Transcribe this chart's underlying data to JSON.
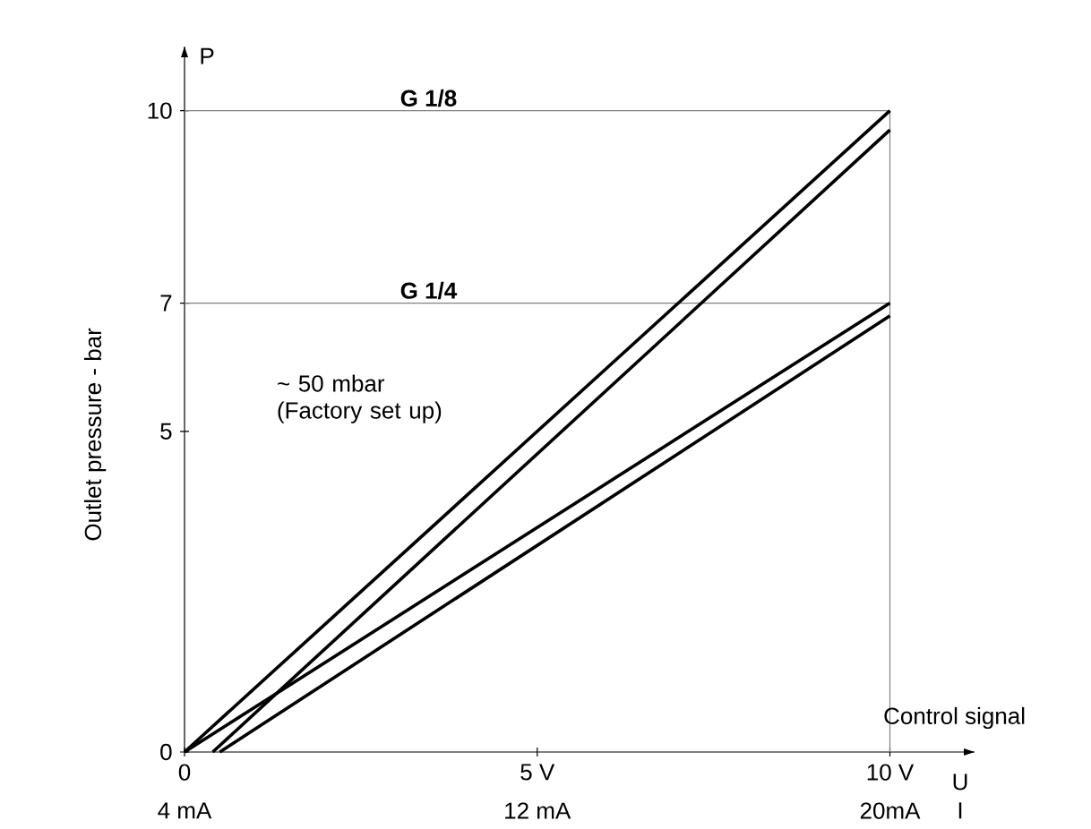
{
  "chart_data": {
    "type": "line",
    "ylabel": "Outlet pressure - bar",
    "xlabel": "U",
    "x2label": "I",
    "xlim": [
      0,
      11.2
    ],
    "xticks": [
      {
        "value": 0,
        "label": "0"
      },
      {
        "value": 5,
        "label": "5 V"
      },
      {
        "value": 10,
        "label": "10 V"
      }
    ],
    "x2lim": [
      4,
      21.92
    ],
    "x2ticks": [
      {
        "value": 4,
        "label": "4 mA"
      },
      {
        "value": 12,
        "label": "12 mA"
      },
      {
        "value": 20,
        "label": "20mA"
      }
    ],
    "ylim": [
      0,
      11
    ],
    "yticks": [
      0,
      5,
      7,
      10
    ],
    "series": [
      {
        "color": "#000000",
        "x": [
          0,
          10
        ],
        "values": [
          0,
          10
        ]
      },
      {
        "color": "#000000",
        "x": [
          0.4,
          10
        ],
        "values": [
          0,
          9.7
        ]
      },
      {
        "color": "#000000",
        "x": [
          0,
          10
        ],
        "values": [
          0,
          7
        ]
      },
      {
        "color": "#000000",
        "x": [
          0.5,
          10
        ],
        "values": [
          0,
          6.8
        ]
      }
    ],
    "ref_lines": [
      {
        "axis": "y",
        "value": 10,
        "label": "G 1/8",
        "color": "#808080"
      },
      {
        "axis": "y",
        "value": 7,
        "label": "G 1/4",
        "color": "#808080"
      },
      {
        "axis": "x",
        "value": 10,
        "label": "Control signal",
        "color": "#808080"
      }
    ],
    "annotations": [
      "P",
      "~ 50 mbar (Factory set up)"
    ],
    "line_style": "solid"
  }
}
